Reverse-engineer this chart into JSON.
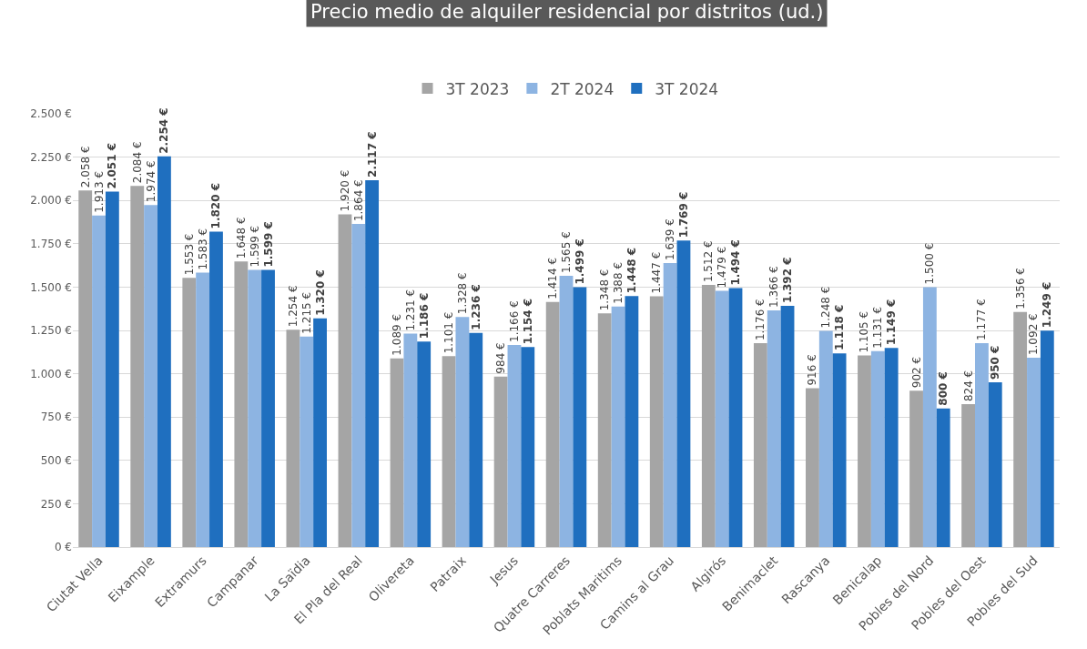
{
  "chart_data": {
    "type": "bar",
    "title": "Precio medio de alquiler residencial por distritos (ud.)",
    "categories": [
      "Ciutat Vella",
      "Eixample",
      "Extramurs",
      "Campanar",
      "La Saïdia",
      "El Pla del Real",
      "Olivereta",
      "Patraix",
      "Jesus",
      "Quatre Carreres",
      "Poblats Maritims",
      "Camins al Grau",
      "Algirós",
      "Benimaclet",
      "Rascanya",
      "Benicalap",
      "Pobles del Nord",
      "Pobles del Oest",
      "Pobles del Sud"
    ],
    "series": [
      {
        "name": "3T 2023",
        "color": "#a5a5a5",
        "values": [
          2058,
          2084,
          1553,
          1648,
          1254,
          1920,
          1089,
          1101,
          984,
          1414,
          1348,
          1447,
          1512,
          1176,
          916,
          1105,
          902,
          824,
          1356
        ],
        "value_labels": [
          "2.058 €",
          "2.084 €",
          "1.553 €",
          "1.648 €",
          "1.254 €",
          "1.920 €",
          "1.089 €",
          "1.101 €",
          "984 €",
          "1.414 €",
          "1.348 €",
          "1.447 €",
          "1.512 €",
          "1.176 €",
          "916 €",
          "1.105 €",
          "902 €",
          "824 €",
          "1.356 €"
        ]
      },
      {
        "name": "2T 2024",
        "color": "#8db4e2",
        "values": [
          1913,
          1974,
          1583,
          1599,
          1215,
          1864,
          1231,
          1328,
          1166,
          1565,
          1388,
          1639,
          1479,
          1366,
          1248,
          1131,
          1500,
          1177,
          1092
        ],
        "value_labels": [
          "1.913 €",
          "1.974 €",
          "1.583 €",
          "1.599 €",
          "1.215 €",
          "1.864 €",
          "1.231 €",
          "1.328 €",
          "1.166 €",
          "1.565 €",
          "1.388 €",
          "1.639 €",
          "1.479 €",
          "1.366 €",
          "1.248 €",
          "1.131 €",
          "1.500 €",
          "1.177 €",
          "1.092 €"
        ]
      },
      {
        "name": "3T 2024",
        "color": "#1f6fbf",
        "values": [
          2051,
          2254,
          1820,
          1599,
          1320,
          2117,
          1186,
          1236,
          1154,
          1499,
          1448,
          1769,
          1494,
          1392,
          1118,
          1149,
          800,
          950,
          1249
        ],
        "value_labels": [
          "2.051 €",
          "2.254 €",
          "1.820 €",
          "1.599 €",
          "1.320 €",
          "2.117 €",
          "1.186 €",
          "1.236 €",
          "1.154 €",
          "1.499 €",
          "1.448 €",
          "1.769 €",
          "1.494 €",
          "1.392 €",
          "1.118 €",
          "1.149 €",
          "800 €",
          "950 €",
          "1.249 €"
        ]
      }
    ],
    "ylim": [
      0,
      2500
    ],
    "yticks": [
      {
        "value": 0,
        "label": "0 €"
      },
      {
        "value": 250,
        "label": "250 €"
      },
      {
        "value": 500,
        "label": "500 €"
      },
      {
        "value": 750,
        "label": "750 €"
      },
      {
        "value": 1000,
        "label": "1.000 €"
      },
      {
        "value": 1250,
        "label": "1.250 €"
      },
      {
        "value": 1500,
        "label": "1.500 €"
      },
      {
        "value": 1750,
        "label": "1.750 €"
      },
      {
        "value": 2000,
        "label": "2.000 €"
      },
      {
        "value": 2250,
        "label": "2.250 €"
      },
      {
        "value": 2500,
        "label": "2.500 €"
      }
    ],
    "grid": "y",
    "legend": "top"
  }
}
